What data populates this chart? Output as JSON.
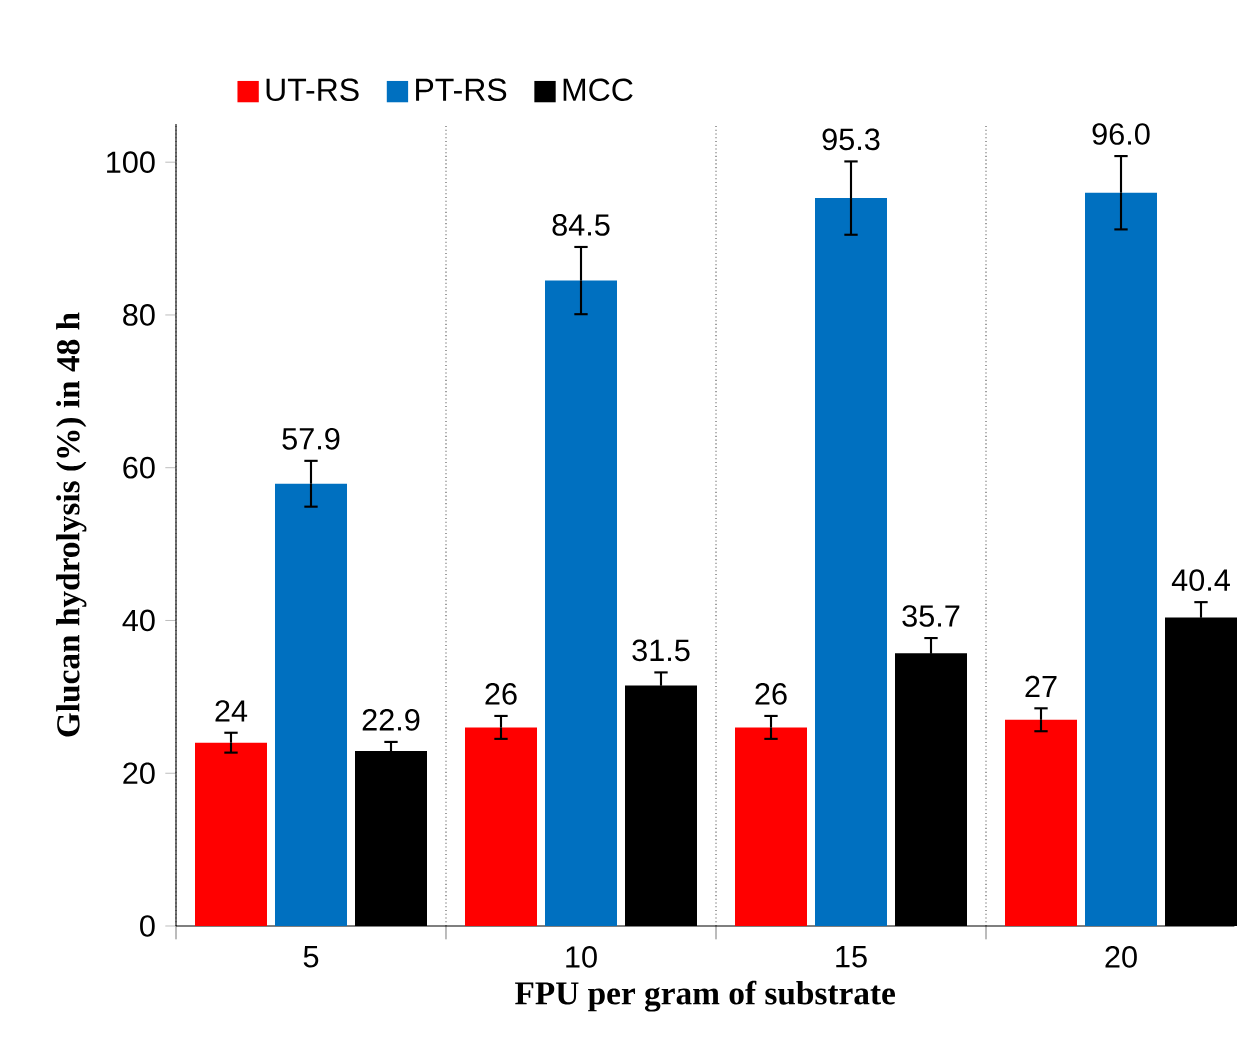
{
  "chart_data": {
    "type": "bar",
    "xlabel": "FPU per gram of substrate",
    "ylabel": "Glucan hydrolysis  (%) in 48 h",
    "categories": [
      "5",
      "10",
      "15",
      "20"
    ],
    "series": [
      {
        "name": "UT-RS",
        "color": "#ff0000",
        "values": [
          24,
          26,
          26,
          27
        ],
        "errors": [
          1.3,
          1.5,
          1.5,
          1.5
        ],
        "value_labels": [
          "24",
          "26",
          "26",
          "27"
        ]
      },
      {
        "name": "PT-RS",
        "color": "#0070c0",
        "values": [
          57.9,
          84.5,
          95.3,
          96.0
        ],
        "errors": [
          3.0,
          4.4,
          4.8,
          4.8
        ],
        "value_labels": [
          "57.9",
          "84.5",
          "95.3",
          "96.0"
        ]
      },
      {
        "name": "MCC",
        "color": "#000000",
        "values": [
          22.9,
          31.5,
          35.7,
          40.4
        ],
        "errors": [
          1.2,
          1.7,
          2.0,
          2.0
        ],
        "value_labels": [
          "22.9",
          "31.5",
          "35.7",
          "40.4"
        ]
      }
    ],
    "ylim": [
      0,
      105
    ],
    "yticks": [
      0,
      20,
      40,
      60,
      80,
      100
    ],
    "grid": "x",
    "legend": "top"
  }
}
